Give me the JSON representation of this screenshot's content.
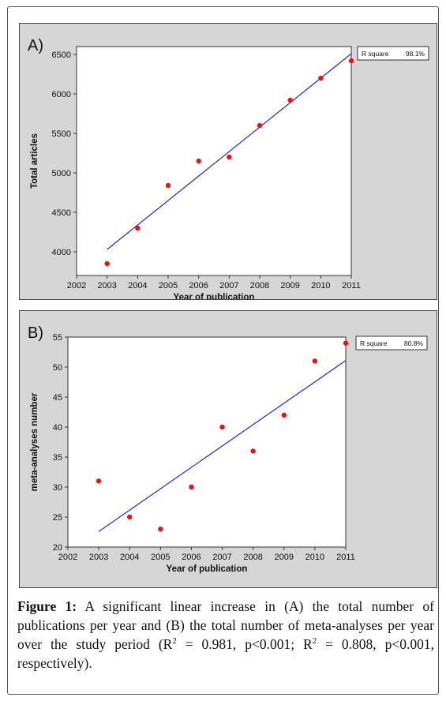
{
  "chart_data": [
    {
      "type": "scatter",
      "panel_label": "A)",
      "xlabel": "Year of publication",
      "ylabel": "Total articles",
      "x": [
        2003,
        2004,
        2005,
        2006,
        2007,
        2008,
        2009,
        2010,
        2011
      ],
      "y": [
        3850,
        4300,
        4840,
        5150,
        5200,
        5600,
        5920,
        6200,
        6420
      ],
      "fit_line": {
        "x": [
          2003,
          2011
        ],
        "y": [
          4030,
          6510
        ]
      },
      "xlim": [
        2002,
        2011
      ],
      "ylim": [
        3700,
        6600
      ],
      "xticks": [
        "2002",
        "2003",
        "2004",
        "2005",
        "2006",
        "2007",
        "2008",
        "2009",
        "2010",
        "2011"
      ],
      "yticks": [
        "4000",
        "4500",
        "5000",
        "5500",
        "6000",
        "6500"
      ],
      "ytick_values": [
        4000,
        4500,
        5000,
        5500,
        6000,
        6500
      ],
      "legend": {
        "label": "R square",
        "value": "98.1%",
        "placement": "top-right"
      },
      "colors": {
        "points": "#ee1111",
        "line": "#2222ee",
        "plot_bg": "#ffffff",
        "panel_bg": "#d6d6d6"
      }
    },
    {
      "type": "scatter",
      "panel_label": "B)",
      "xlabel": "Year of publication",
      "ylabel": "meta-analyses number",
      "x": [
        2003,
        2004,
        2005,
        2006,
        2007,
        2008,
        2009,
        2010,
        2011
      ],
      "y": [
        31,
        25,
        23,
        30,
        40,
        36,
        42,
        51,
        54
      ],
      "fit_line": {
        "x": [
          2003,
          2011
        ],
        "y": [
          22.6,
          51.1
        ]
      },
      "xlim": [
        2002,
        2011
      ],
      "ylim": [
        20,
        55
      ],
      "xticks": [
        "2002",
        "2003",
        "2004",
        "2005",
        "2006",
        "2007",
        "2008",
        "2009",
        "2010",
        "2011"
      ],
      "yticks": [
        "20",
        "25",
        "30",
        "35",
        "40",
        "45",
        "50",
        "55"
      ],
      "ytick_values": [
        20,
        25,
        30,
        35,
        40,
        45,
        50,
        55
      ],
      "legend": {
        "label": "R square",
        "value": "80.8%",
        "placement": "top-right"
      },
      "colors": {
        "points": "#ee1111",
        "line": "#2222ee",
        "plot_bg": "#ffffff",
        "panel_bg": "#d6d6d6"
      }
    }
  ],
  "caption": {
    "label": "Figure 1:",
    "text1": " A significant linear increase in (A) the total number of publications per year and (B) the total number of meta-analyses per year over the study period (R",
    "sup1": "2",
    "text2": " = 0.981, p<0.001; R",
    "sup2": "2",
    "text3": " = 0.808, p<0.001, respectively)."
  }
}
